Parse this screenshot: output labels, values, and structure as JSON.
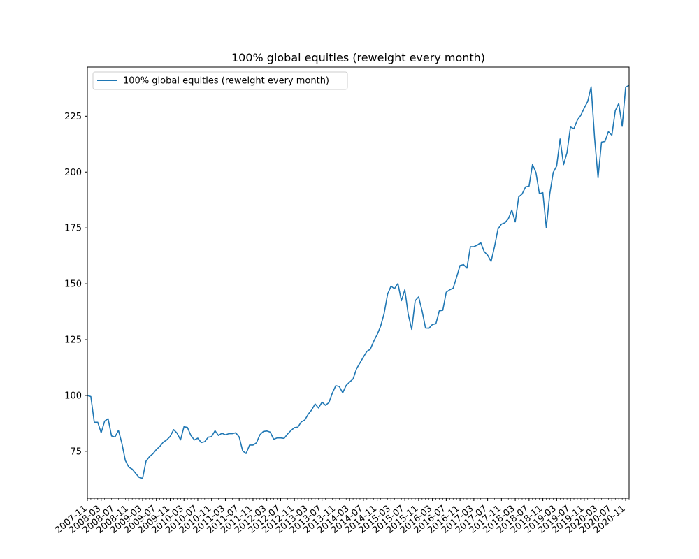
{
  "chart_data": {
    "type": "line",
    "title": "100% global equities (reweight every month)",
    "xlabel": "",
    "ylabel": "",
    "grid": false,
    "legend_position": "top-left",
    "ylim": [
      54,
      247
    ],
    "y_ticks": [
      75,
      100,
      125,
      150,
      175,
      200,
      225
    ],
    "x_ticks": [
      "2007-11",
      "2008-03",
      "2008-07",
      "2008-11",
      "2009-03",
      "2009-07",
      "2009-11",
      "2010-03",
      "2010-07",
      "2010-11",
      "2011-03",
      "2011-07",
      "2011-11",
      "2012-03",
      "2012-07",
      "2012-11",
      "2013-03",
      "2013-07",
      "2013-11",
      "2014-03",
      "2014-07",
      "2014-11",
      "2015-03",
      "2015-07",
      "2015-11",
      "2016-03",
      "2016-07",
      "2016-11",
      "2017-03",
      "2017-07",
      "2017-11",
      "2018-03",
      "2018-07",
      "2018-11",
      "2019-03",
      "2019-07",
      "2019-11",
      "2020-03",
      "2020-07",
      "2020-11"
    ],
    "series": [
      {
        "name": "100% global equities (reweight every month)",
        "color": "#1f77b4",
        "start": "2007-11",
        "values": [
          100.0,
          99.5,
          88.0,
          88.0,
          83.3,
          88.5,
          89.6,
          81.9,
          81.4,
          84.4,
          78.6,
          70.9,
          67.9,
          67.0,
          65.1,
          63.3,
          62.9,
          70.6,
          72.6,
          73.9,
          75.8,
          77.2,
          79.1,
          80.1,
          81.7,
          84.7,
          83.1,
          80.1,
          86.0,
          85.7,
          82.1,
          80.1,
          80.9,
          78.9,
          79.3,
          81.3,
          81.6,
          84.2,
          82.1,
          83.1,
          82.4,
          82.9,
          82.9,
          83.3,
          81.4,
          75.2,
          74.0,
          77.8,
          77.8,
          78.8,
          82.4,
          83.9,
          84.1,
          83.6,
          80.4,
          81.0,
          81.0,
          80.8,
          82.7,
          84.3,
          85.6,
          85.8,
          88.2,
          89.0,
          91.6,
          93.5,
          96.2,
          94.4,
          97.0,
          95.6,
          96.8,
          101.1,
          104.4,
          104.0,
          101.2,
          104.5,
          106.0,
          107.4,
          111.9,
          114.6,
          117.2,
          119.7,
          120.7,
          124.3,
          127.3,
          131.1,
          136.7,
          145.3,
          148.9,
          147.8,
          150.1,
          142.4,
          147.3,
          136.2,
          129.6,
          142.4,
          144.1,
          137.9,
          130.2,
          130.1,
          131.8,
          132.1,
          137.9,
          138.1,
          146.2,
          147.3,
          148.0,
          152.9,
          158.2,
          158.6,
          157.0,
          166.6,
          166.6,
          167.3,
          168.4,
          164.4,
          162.8,
          160.0,
          166.6,
          174.5,
          176.7,
          177.3,
          179.1,
          183.0,
          177.7,
          188.9,
          190.2,
          193.4,
          193.7,
          203.4,
          199.8,
          190.3,
          190.8,
          175.1,
          190.2,
          199.8,
          202.7,
          214.8,
          203.3,
          208.7,
          220.2,
          219.4,
          223.3,
          225.4,
          228.7,
          231.6,
          238.2,
          215.2,
          197.4,
          213.4,
          213.7,
          218.1,
          216.5,
          227.5,
          230.7,
          220.5,
          238.0,
          238.8
        ]
      }
    ]
  }
}
